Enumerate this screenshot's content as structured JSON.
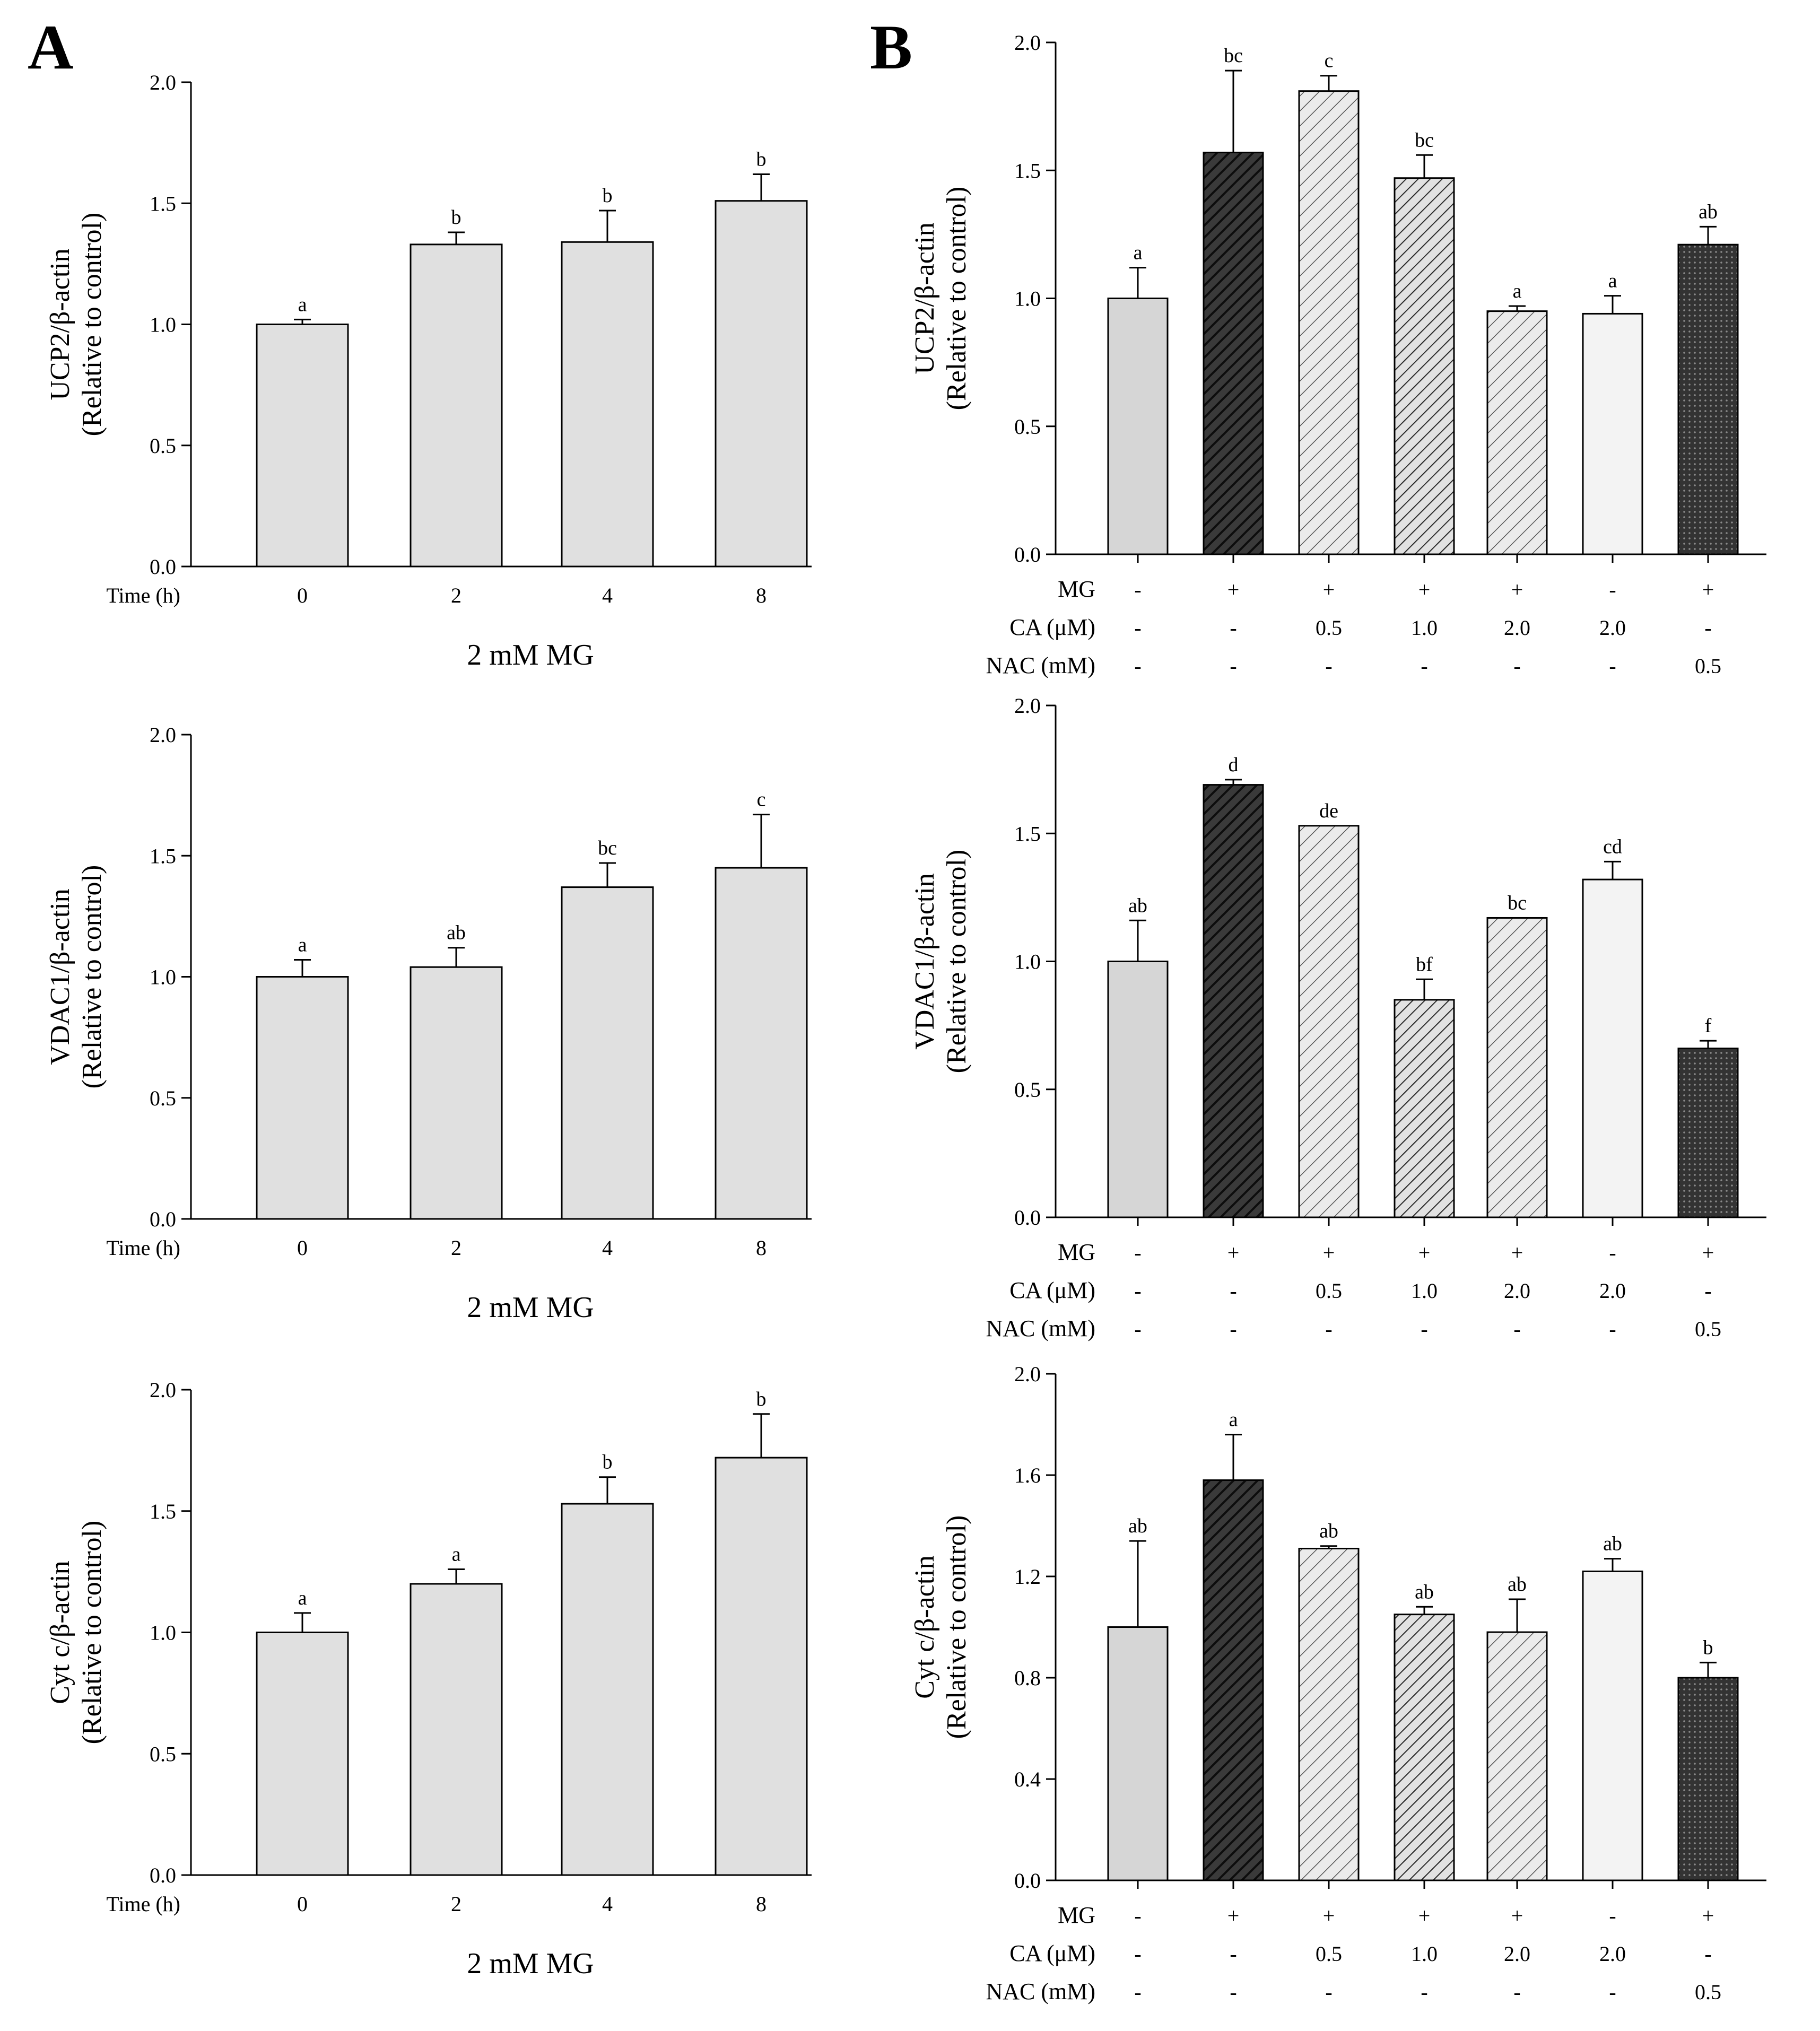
{
  "panels": {
    "a_label": "A",
    "b_label": "B"
  },
  "colors": {
    "bar_a": "#e0e0e0",
    "axis": "#000000",
    "b_ctrl": "#d9d9d9",
    "b_mg": "#2e2e2e",
    "b_light": "#f2f2f2",
    "b_hatch_light": "#e8e8e8",
    "b_nac": "#3a3a3a"
  },
  "chart_data": [
    {
      "id": "A1",
      "type": "bar",
      "ylabel_line1": "UCP2/β-actin",
      "ylabel_line2": "(Relative to control)",
      "xlabel": "2 mM MG",
      "row_label": "Time (h)",
      "categories": [
        "0",
        "2",
        "4",
        "8"
      ],
      "values": [
        1.0,
        1.33,
        1.34,
        1.51
      ],
      "errors": [
        0.02,
        0.05,
        0.13,
        0.11
      ],
      "letters": [
        "a",
        "b",
        "b",
        "b"
      ],
      "ylim": [
        0,
        2.0
      ],
      "yticks": [
        "0.0",
        "0.5",
        "1.0",
        "1.5",
        "2.0"
      ]
    },
    {
      "id": "A2",
      "type": "bar",
      "ylabel_line1": "VDAC1/β-actin",
      "ylabel_line2": "(Relative to control)",
      "xlabel": "2 mM MG",
      "row_label": "Time (h)",
      "categories": [
        "0",
        "2",
        "4",
        "8"
      ],
      "values": [
        1.0,
        1.04,
        1.37,
        1.45
      ],
      "errors": [
        0.07,
        0.08,
        0.1,
        0.22
      ],
      "letters": [
        "a",
        "ab",
        "bc",
        "c"
      ],
      "ylim": [
        0,
        2.0
      ],
      "yticks": [
        "0.0",
        "0.5",
        "1.0",
        "1.5",
        "2.0"
      ]
    },
    {
      "id": "A3",
      "type": "bar",
      "ylabel_line1": "Cyt c/β-actin",
      "ylabel_line2": "(Relative to control)",
      "xlabel": "2 mM MG",
      "row_label": "Time (h)",
      "categories": [
        "0",
        "2",
        "4",
        "8"
      ],
      "values": [
        1.0,
        1.2,
        1.53,
        1.72
      ],
      "errors": [
        0.08,
        0.06,
        0.11,
        0.18
      ],
      "letters": [
        "a",
        "a",
        "b",
        "b"
      ],
      "ylim": [
        0,
        2.0
      ],
      "yticks": [
        "0.0",
        "0.5",
        "1.0",
        "1.5",
        "2.0"
      ]
    },
    {
      "id": "B1",
      "type": "bar",
      "ylabel_line1": "UCP2/β-actin",
      "ylabel_line2": "(Relative to control)",
      "values": [
        1.0,
        1.57,
        1.81,
        1.47,
        0.95,
        0.94,
        1.21
      ],
      "errors": [
        0.12,
        0.32,
        0.06,
        0.09,
        0.02,
        0.07,
        0.07
      ],
      "letters": [
        "a",
        "bc",
        "c",
        "bc",
        "a",
        "a",
        "ab"
      ],
      "ylim": [
        0,
        2.0
      ],
      "yticks": [
        "0.0",
        "0.5",
        "1.0",
        "1.5",
        "2.0"
      ],
      "treatments": [
        {
          "label": "MG",
          "values": [
            "-",
            "+",
            "+",
            "+",
            "+",
            "-",
            "+"
          ]
        },
        {
          "label": "CA (μM)",
          "values": [
            "-",
            "-",
            "0.5",
            "1.0",
            "2.0",
            "2.0",
            "-"
          ]
        },
        {
          "label": "NAC (mM)",
          "values": [
            "-",
            "-",
            "-",
            "-",
            "-",
            "-",
            "0.5"
          ]
        }
      ]
    },
    {
      "id": "B2",
      "type": "bar",
      "ylabel_line1": "VDAC1/β-actin",
      "ylabel_line2": "(Relative to control)",
      "values": [
        1.0,
        1.69,
        1.53,
        0.85,
        1.17,
        1.32,
        0.66
      ],
      "errors": [
        0.16,
        0.02,
        0.0,
        0.08,
        0.0,
        0.07,
        0.03
      ],
      "letters": [
        "ab",
        "d",
        "de",
        "bf",
        "bc",
        "cd",
        "f"
      ],
      "ylim": [
        0,
        2.0
      ],
      "yticks": [
        "0.0",
        "0.5",
        "1.0",
        "1.5",
        "2.0"
      ],
      "treatments": [
        {
          "label": "MG",
          "values": [
            "-",
            "+",
            "+",
            "+",
            "+",
            "-",
            "+"
          ]
        },
        {
          "label": "CA (μM)",
          "values": [
            "-",
            "-",
            "0.5",
            "1.0",
            "2.0",
            "2.0",
            "-"
          ]
        },
        {
          "label": "NAC (mM)",
          "values": [
            "-",
            "-",
            "-",
            "-",
            "-",
            "-",
            "0.5"
          ]
        }
      ]
    },
    {
      "id": "B3",
      "type": "bar",
      "ylabel_line1": "Cyt c/β-actin",
      "ylabel_line2": "(Relative to control)",
      "values": [
        1.0,
        1.58,
        1.31,
        1.05,
        0.98,
        1.22,
        0.8
      ],
      "errors": [
        0.34,
        0.18,
        0.01,
        0.03,
        0.13,
        0.05,
        0.06
      ],
      "letters": [
        "ab",
        "a",
        "ab",
        "ab",
        "ab",
        "ab",
        "b"
      ],
      "ylim": [
        0,
        2.0
      ],
      "yticks": [
        "0.0",
        "0.4",
        "0.8",
        "1.2",
        "1.6",
        "2.0"
      ],
      "treatments": [
        {
          "label": "MG",
          "values": [
            "-",
            "+",
            "+",
            "+",
            "+",
            "-",
            "+"
          ]
        },
        {
          "label": "CA (μM)",
          "values": [
            "-",
            "-",
            "0.5",
            "1.0",
            "2.0",
            "2.0",
            "-"
          ]
        },
        {
          "label": "NAC (mM)",
          "values": [
            "-",
            "-",
            "-",
            "-",
            "-",
            "-",
            "0.5"
          ]
        }
      ]
    }
  ]
}
